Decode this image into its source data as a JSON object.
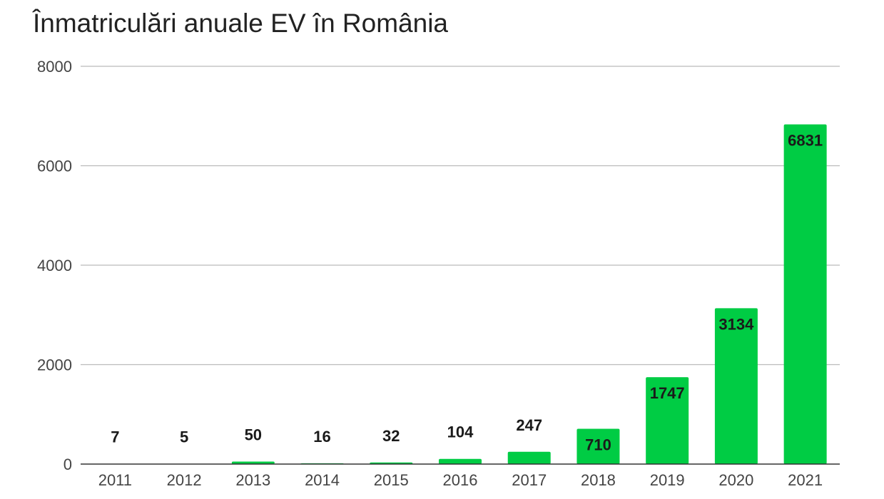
{
  "chart_data": {
    "type": "bar",
    "title": "Înmatriculări anuale EV în România",
    "xlabel": "",
    "ylabel": "",
    "categories": [
      "2011",
      "2012",
      "2013",
      "2014",
      "2015",
      "2016",
      "2017",
      "2018",
      "2019",
      "2020",
      "2021"
    ],
    "values": [
      7,
      5,
      50,
      16,
      32,
      104,
      247,
      710,
      1747,
      3134,
      6831
    ],
    "ylim": [
      0,
      8000
    ],
    "yticks": [
      0,
      2000,
      4000,
      6000,
      8000
    ],
    "grid": true,
    "legend": "none",
    "colors": {
      "bar": "#00cc44",
      "grid": "#bbbbbb",
      "axis": "#333333"
    }
  }
}
